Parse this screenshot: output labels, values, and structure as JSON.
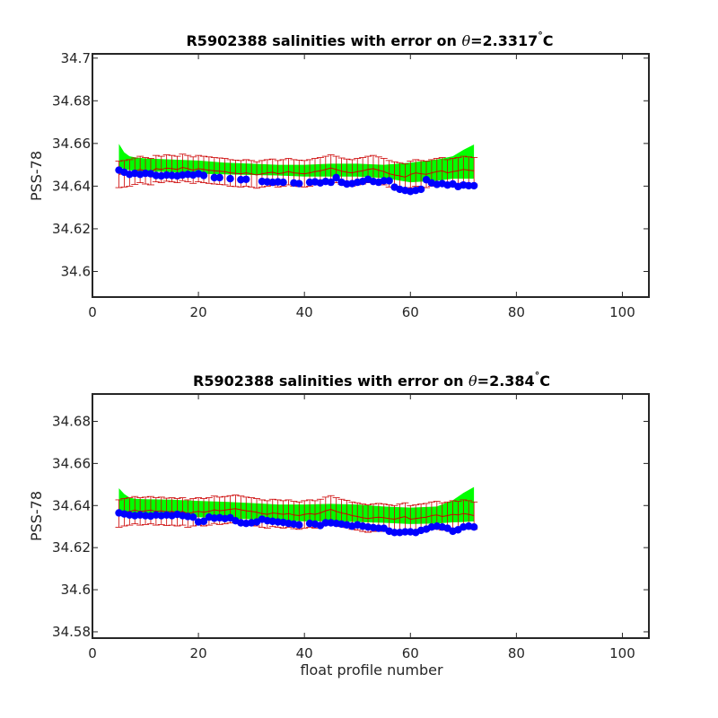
{
  "chart_data": [
    {
      "type": "line",
      "title_prefix": "R5902388 salinities with error on ",
      "theta": "θ",
      "title_value": "=2.3317",
      "degree": "°",
      "title_unit": "C",
      "xlabel": "",
      "ylabel": "PSS-78",
      "xlim": [
        0,
        105
      ],
      "ylim": [
        34.588,
        34.702
      ],
      "xticks": [
        0,
        20,
        40,
        60,
        80,
        100
      ],
      "yticks": [
        34.6,
        34.62,
        34.64,
        34.66,
        34.68,
        34.7
      ],
      "ytick_labels": [
        "34.6",
        "34.62",
        "34.64",
        "34.66",
        "34.68",
        "34.7"
      ],
      "colors": {
        "envelope": "#00ff00",
        "mapped": "#cc0000",
        "float": "#0000ff"
      },
      "series": [
        {
          "x": [
            5,
            6,
            7,
            8,
            9,
            10,
            11,
            12,
            13,
            14,
            15,
            16,
            17,
            18,
            19,
            20,
            21,
            23,
            24,
            26,
            28,
            29,
            32,
            33,
            34,
            35,
            36,
            38,
            39,
            41,
            42,
            43,
            44,
            45,
            46,
            47,
            48,
            49,
            50,
            51,
            52,
            53,
            54,
            55,
            56,
            57,
            58,
            59,
            60,
            61,
            62,
            63,
            64,
            65,
            66,
            67,
            68,
            69,
            70,
            71,
            72
          ],
          "values": [
            34.6475,
            34.6465,
            34.6455,
            34.646,
            34.6455,
            34.646,
            34.6458,
            34.645,
            34.6448,
            34.6452,
            34.645,
            34.6448,
            34.6452,
            34.6455,
            34.6452,
            34.6458,
            34.645,
            34.644,
            34.644,
            34.6435,
            34.643,
            34.6432,
            34.6422,
            34.642,
            34.6418,
            34.642,
            34.6418,
            34.6415,
            34.6412,
            34.6418,
            34.642,
            34.6415,
            34.6422,
            34.6418,
            34.644,
            34.6418,
            34.641,
            34.6412,
            34.6418,
            34.6422,
            34.6432,
            34.6422,
            34.6418,
            34.6425,
            34.6425,
            34.6395,
            34.6385,
            34.638,
            34.6375,
            34.638,
            34.6385,
            34.643,
            34.6415,
            34.6408,
            34.6412,
            34.6405,
            34.641,
            34.6398,
            34.6405,
            34.6402,
            34.6402
          ]
        },
        {
          "x": [
            5,
            6,
            7,
            8,
            9,
            10,
            11,
            12,
            13,
            14,
            15,
            16,
            17,
            18,
            19,
            20,
            21,
            22,
            23,
            24,
            25,
            26,
            27,
            28,
            29,
            30,
            31,
            32,
            33,
            34,
            35,
            36,
            37,
            38,
            39,
            40,
            41,
            42,
            43,
            44,
            45,
            46,
            47,
            48,
            49,
            50,
            51,
            52,
            53,
            54,
            55,
            56,
            57,
            58,
            59,
            60,
            61,
            62,
            63,
            64,
            65,
            66,
            67,
            68,
            69,
            70,
            71,
            72
          ],
          "values": [
            34.6455,
            34.6458,
            34.6462,
            34.647,
            34.6478,
            34.6472,
            34.6468,
            34.6482,
            34.6478,
            34.6485,
            34.6482,
            34.6478,
            34.6488,
            34.6482,
            34.6475,
            34.6482,
            34.6478,
            34.6475,
            34.6472,
            34.647,
            34.6468,
            34.6462,
            34.646,
            34.6458,
            34.6462,
            34.6458,
            34.6452,
            34.6458,
            34.6462,
            34.6465,
            34.6458,
            34.6462,
            34.6468,
            34.6462,
            34.646,
            34.6458,
            34.6462,
            34.6468,
            34.6472,
            34.6478,
            34.6485,
            34.6478,
            34.647,
            34.6465,
            34.6462,
            34.6468,
            34.6472,
            34.6478,
            34.6482,
            34.6475,
            34.6468,
            34.6458,
            34.6452,
            34.6448,
            34.6442,
            34.6455,
            34.6462,
            34.6458,
            34.6455,
            34.6462,
            34.6468,
            34.6472,
            34.6462,
            34.6468,
            34.6472,
            34.6478,
            34.6475,
            34.6472
          ],
          "err": 0.0062
        },
        {
          "x": [
            5,
            6,
            7,
            8,
            10,
            15,
            20,
            25,
            30,
            35,
            40,
            45,
            50,
            55,
            60,
            65,
            68,
            70,
            72
          ],
          "upper": [
            34.6598,
            34.6558,
            34.654,
            34.6535,
            34.653,
            34.6525,
            34.652,
            34.651,
            34.6505,
            34.65,
            34.65,
            34.6505,
            34.6505,
            34.65,
            34.651,
            34.6525,
            34.654,
            34.657,
            34.6595
          ],
          "lower": [
            34.649,
            34.648,
            34.6475,
            34.647,
            34.647,
            34.6465,
            34.6458,
            34.6455,
            34.6452,
            34.645,
            34.6445,
            34.6445,
            34.6445,
            34.6438,
            34.6418,
            34.6425,
            34.6435,
            34.6435,
            34.6435
          ]
        }
      ]
    },
    {
      "type": "line",
      "title_prefix": "R5902388 salinities with error on ",
      "theta": "θ",
      "title_value": "=2.384",
      "degree": "°",
      "title_unit": "C",
      "xlabel": "float profile number",
      "ylabel": "PSS-78",
      "xlim": [
        0,
        105
      ],
      "ylim": [
        34.577,
        34.693
      ],
      "xticks": [
        0,
        20,
        40,
        60,
        80,
        100
      ],
      "yticks": [
        34.58,
        34.6,
        34.62,
        34.64,
        34.66,
        34.68
      ],
      "ytick_labels": [
        "34.58",
        "34.6",
        "34.62",
        "34.64",
        "34.66",
        "34.68"
      ],
      "colors": {
        "envelope": "#00ff00",
        "mapped": "#cc0000",
        "float": "#0000ff"
      },
      "series": [
        {
          "x": [
            5,
            6,
            7,
            8,
            9,
            10,
            11,
            12,
            13,
            14,
            15,
            16,
            17,
            18,
            19,
            20,
            21,
            22,
            23,
            24,
            25,
            26,
            27,
            28,
            29,
            30,
            31,
            32,
            33,
            34,
            35,
            36,
            37,
            38,
            39,
            41,
            42,
            43,
            44,
            45,
            46,
            47,
            48,
            49,
            50,
            51,
            52,
            53,
            54,
            55,
            56,
            57,
            58,
            59,
            60,
            61,
            62,
            63,
            64,
            65,
            66,
            67,
            68,
            69,
            70,
            71,
            72
          ],
          "values": [
            34.6365,
            34.636,
            34.6355,
            34.6352,
            34.6355,
            34.6352,
            34.635,
            34.6355,
            34.6352,
            34.6355,
            34.6352,
            34.6358,
            34.6352,
            34.6348,
            34.6345,
            34.6322,
            34.6325,
            34.6345,
            34.634,
            34.6342,
            34.6338,
            34.6342,
            34.6328,
            34.6318,
            34.6315,
            34.6318,
            34.6322,
            34.6335,
            34.6328,
            34.6325,
            34.6322,
            34.632,
            34.6315,
            34.6312,
            34.6308,
            34.6315,
            34.6312,
            34.6305,
            34.6318,
            34.6318,
            34.6315,
            34.6312,
            34.6308,
            34.6302,
            34.6308,
            34.6302,
            34.6298,
            34.6295,
            34.6292,
            34.6292,
            34.6278,
            34.6272,
            34.6272,
            34.6275,
            34.6275,
            34.6272,
            34.6282,
            34.6288,
            34.6298,
            34.6302,
            34.6298,
            34.6292,
            34.6278,
            34.6285,
            34.6298,
            34.6302,
            34.6298
          ]
        },
        {
          "x": [
            5,
            6,
            7,
            8,
            9,
            10,
            11,
            12,
            13,
            14,
            15,
            16,
            17,
            18,
            19,
            20,
            21,
            22,
            23,
            24,
            25,
            26,
            27,
            28,
            29,
            30,
            31,
            32,
            33,
            34,
            35,
            36,
            37,
            38,
            39,
            40,
            41,
            42,
            43,
            44,
            45,
            46,
            47,
            48,
            49,
            50,
            51,
            52,
            53,
            54,
            55,
            56,
            57,
            58,
            59,
            60,
            61,
            62,
            63,
            64,
            65,
            66,
            67,
            68,
            69,
            70,
            71,
            72
          ],
          "values": [
            34.6362,
            34.6368,
            34.6372,
            34.6378,
            34.6372,
            34.6375,
            34.6378,
            34.6372,
            34.6375,
            34.637,
            34.6372,
            34.6368,
            34.6372,
            34.6362,
            34.6368,
            34.6372,
            34.6368,
            34.6372,
            34.638,
            34.6375,
            34.6378,
            34.6382,
            34.6385,
            34.638,
            34.6375,
            34.6372,
            34.6368,
            34.6362,
            34.6358,
            34.6365,
            34.6362,
            34.6358,
            34.6362,
            34.6355,
            34.6352,
            34.6358,
            34.6362,
            34.6358,
            34.6365,
            34.6375,
            34.6382,
            34.6372,
            34.6365,
            34.636,
            34.6352,
            34.6348,
            34.6342,
            34.6338,
            34.6342,
            34.6345,
            34.6342,
            34.6338,
            34.6335,
            34.6342,
            34.6348,
            34.6335,
            34.6338,
            34.6342,
            34.6345,
            34.6352,
            34.6355,
            34.6348,
            34.6352,
            34.6358,
            34.6355,
            34.6362,
            34.6358,
            34.6352
          ],
          "err": 0.0065
        },
        {
          "x": [
            5,
            6,
            7,
            8,
            10,
            15,
            20,
            25,
            30,
            35,
            40,
            45,
            50,
            55,
            60,
            65,
            68,
            70,
            72
          ],
          "upper": [
            34.6482,
            34.6455,
            34.6438,
            34.6432,
            34.643,
            34.6428,
            34.6422,
            34.6418,
            34.6412,
            34.6405,
            34.6405,
            34.6408,
            34.6405,
            34.6395,
            34.639,
            34.6395,
            34.6425,
            34.646,
            34.6488
          ],
          "lower": [
            34.6372,
            34.6365,
            34.6362,
            34.6358,
            34.6358,
            34.6355,
            34.6345,
            34.6338,
            34.6335,
            34.6328,
            34.6325,
            34.6325,
            34.6322,
            34.6318,
            34.6312,
            34.6315,
            34.632,
            34.6322,
            34.6325
          ]
        }
      ]
    }
  ]
}
